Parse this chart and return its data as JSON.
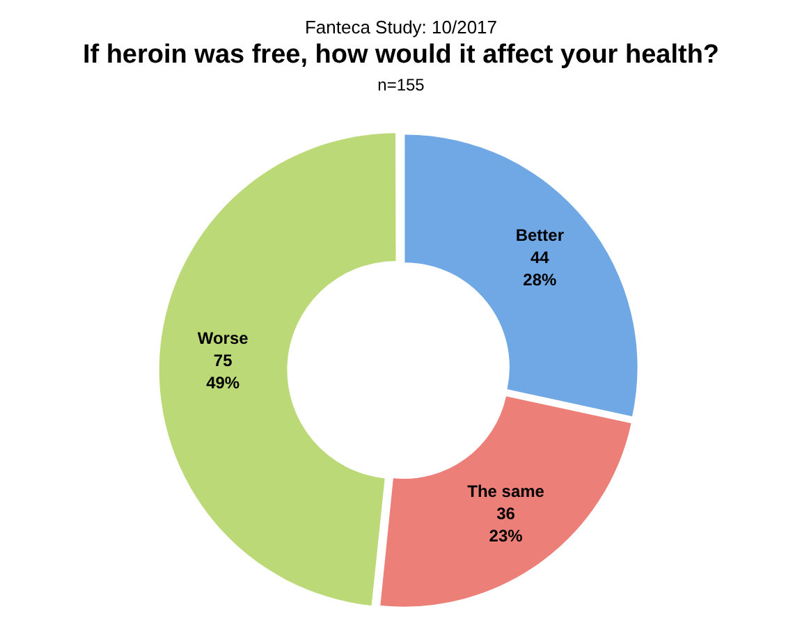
{
  "chart_data": {
    "type": "donut",
    "subtitle": "Fanteca Study: 10/2017",
    "title": "If heroin was free, how would it affect your health?",
    "annotations": [
      "n=155"
    ],
    "categories": [
      "Better",
      "The same",
      "Worse"
    ],
    "values": [
      44,
      36,
      75
    ],
    "value_labels": [
      "44\n28%",
      "36\n23%",
      "75\n49%"
    ],
    "colors": [
      "#6fa8e4",
      "#ec7f78",
      "#bcd978"
    ],
    "legend": false
  }
}
